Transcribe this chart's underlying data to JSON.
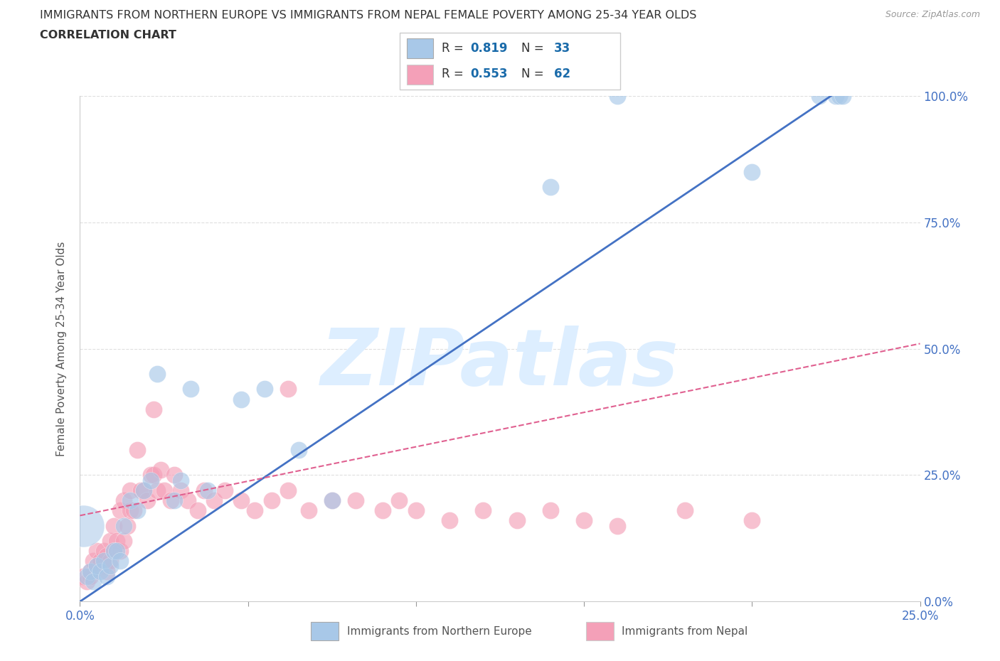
{
  "title_line1": "IMMIGRANTS FROM NORTHERN EUROPE VS IMMIGRANTS FROM NEPAL FEMALE POVERTY AMONG 25-34 YEAR OLDS",
  "title_line2": "CORRELATION CHART",
  "source": "Source: ZipAtlas.com",
  "ylabel": "Female Poverty Among 25-34 Year Olds",
  "xlabel_blue": "Immigrants from Northern Europe",
  "xlabel_pink": "Immigrants from Nepal",
  "xlim": [
    0.0,
    0.25
  ],
  "ylim": [
    0.0,
    1.0
  ],
  "xticks": [
    0.0,
    0.05,
    0.1,
    0.15,
    0.2,
    0.25
  ],
  "yticks": [
    0.0,
    0.25,
    0.5,
    0.75,
    1.0
  ],
  "xtick_labels": [
    "0.0%",
    "",
    "",
    "",
    "",
    "25.0%"
  ],
  "ytick_labels_right": [
    "0.0%",
    "25.0%",
    "50.0%",
    "75.0%",
    "100.0%"
  ],
  "blue_R": 0.819,
  "blue_N": 33,
  "pink_R": 0.553,
  "pink_N": 62,
  "blue_color": "#a8c8e8",
  "pink_color": "#f4a0b8",
  "blue_line_color": "#4472c4",
  "pink_line_color": "#e06090",
  "watermark_text": "ZIPatlas",
  "watermark_color": "#ddeeff",
  "blue_scatter_x": [
    0.001,
    0.002,
    0.003,
    0.004,
    0.005,
    0.006,
    0.007,
    0.008,
    0.009,
    0.01,
    0.011,
    0.012,
    0.013,
    0.015,
    0.017,
    0.019,
    0.021,
    0.023,
    0.028,
    0.03,
    0.033,
    0.038,
    0.048,
    0.055,
    0.065,
    0.075,
    0.14,
    0.16,
    0.2,
    0.22,
    0.225,
    0.226,
    0.227
  ],
  "blue_scatter_y": [
    0.15,
    0.05,
    0.06,
    0.04,
    0.07,
    0.06,
    0.08,
    0.05,
    0.07,
    0.1,
    0.1,
    0.08,
    0.15,
    0.2,
    0.18,
    0.22,
    0.24,
    0.45,
    0.2,
    0.24,
    0.42,
    0.22,
    0.4,
    0.42,
    0.3,
    0.2,
    0.82,
    1.0,
    0.85,
    1.0,
    1.0,
    1.0,
    1.0
  ],
  "blue_scatter_size": [
    800,
    100,
    100,
    100,
    100,
    100,
    100,
    100,
    100,
    100,
    100,
    100,
    100,
    100,
    100,
    100,
    100,
    100,
    100,
    100,
    100,
    100,
    100,
    100,
    100,
    100,
    100,
    100,
    100,
    100,
    100,
    100,
    100
  ],
  "pink_scatter_x": [
    0.001,
    0.002,
    0.003,
    0.003,
    0.004,
    0.005,
    0.005,
    0.006,
    0.007,
    0.007,
    0.008,
    0.008,
    0.009,
    0.009,
    0.01,
    0.01,
    0.011,
    0.012,
    0.012,
    0.013,
    0.013,
    0.014,
    0.015,
    0.015,
    0.016,
    0.017,
    0.018,
    0.019,
    0.02,
    0.021,
    0.022,
    0.023,
    0.024,
    0.025,
    0.027,
    0.028,
    0.03,
    0.032,
    0.035,
    0.037,
    0.04,
    0.043,
    0.048,
    0.052,
    0.057,
    0.062,
    0.068,
    0.075,
    0.082,
    0.09,
    0.095,
    0.1,
    0.11,
    0.12,
    0.13,
    0.14,
    0.15,
    0.16,
    0.18,
    0.2,
    0.022,
    0.062
  ],
  "pink_scatter_y": [
    0.05,
    0.04,
    0.06,
    0.05,
    0.08,
    0.1,
    0.07,
    0.08,
    0.07,
    0.1,
    0.06,
    0.09,
    0.08,
    0.12,
    0.1,
    0.15,
    0.12,
    0.1,
    0.18,
    0.12,
    0.2,
    0.15,
    0.18,
    0.22,
    0.18,
    0.3,
    0.22,
    0.22,
    0.2,
    0.25,
    0.25,
    0.22,
    0.26,
    0.22,
    0.2,
    0.25,
    0.22,
    0.2,
    0.18,
    0.22,
    0.2,
    0.22,
    0.2,
    0.18,
    0.2,
    0.22,
    0.18,
    0.2,
    0.2,
    0.18,
    0.2,
    0.18,
    0.16,
    0.18,
    0.16,
    0.18,
    0.16,
    0.15,
    0.18,
    0.16,
    0.38,
    0.42
  ],
  "pink_scatter_size": [
    100,
    100,
    100,
    100,
    100,
    100,
    100,
    100,
    100,
    100,
    100,
    100,
    100,
    100,
    100,
    100,
    100,
    100,
    100,
    100,
    100,
    100,
    100,
    100,
    100,
    100,
    100,
    100,
    100,
    100,
    100,
    100,
    100,
    100,
    100,
    100,
    100,
    100,
    100,
    100,
    100,
    100,
    100,
    100,
    100,
    100,
    100,
    100,
    100,
    100,
    100,
    100,
    100,
    100,
    100,
    100,
    100,
    100,
    100,
    100,
    100,
    100
  ],
  "blue_line_x": [
    0.0,
    0.228
  ],
  "blue_line_y": [
    0.0,
    1.02
  ],
  "pink_line_x": [
    0.0,
    0.25
  ],
  "pink_line_y": [
    0.17,
    0.51
  ],
  "grid_color": "#d8d8d8",
  "bg_color": "#ffffff",
  "title_color": "#333333",
  "axis_label_color": "#555555",
  "tick_color": "#4472c4",
  "legend_R_color": "#1a3a6b",
  "legend_N_color": "#1a6baa"
}
